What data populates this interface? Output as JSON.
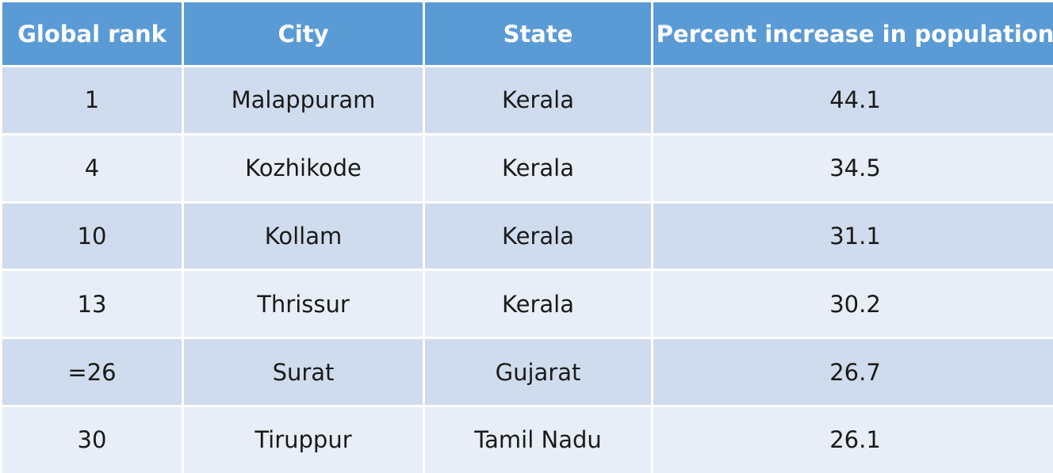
{
  "table": {
    "headers": [
      "Global rank",
      "City",
      "State",
      "Percent increase in population"
    ],
    "rows": [
      [
        "1",
        "Malappuram",
        "Kerala",
        "44.1"
      ],
      [
        "4",
        "Kozhikode",
        "Kerala",
        "34.5"
      ],
      [
        "10",
        "Kollam",
        "Kerala",
        "31.1"
      ],
      [
        "13",
        "Thrissur",
        "Kerala",
        "30.2"
      ],
      [
        "=26",
        "Surat",
        "Gujarat",
        "26.7"
      ],
      [
        "30",
        "Tiruppur",
        "Tamil Nadu",
        "26.1"
      ]
    ]
  },
  "colors": {
    "header_bg": "#5b9bd5",
    "row_dark": "#cfdcee",
    "row_light": "#e8eef7"
  }
}
